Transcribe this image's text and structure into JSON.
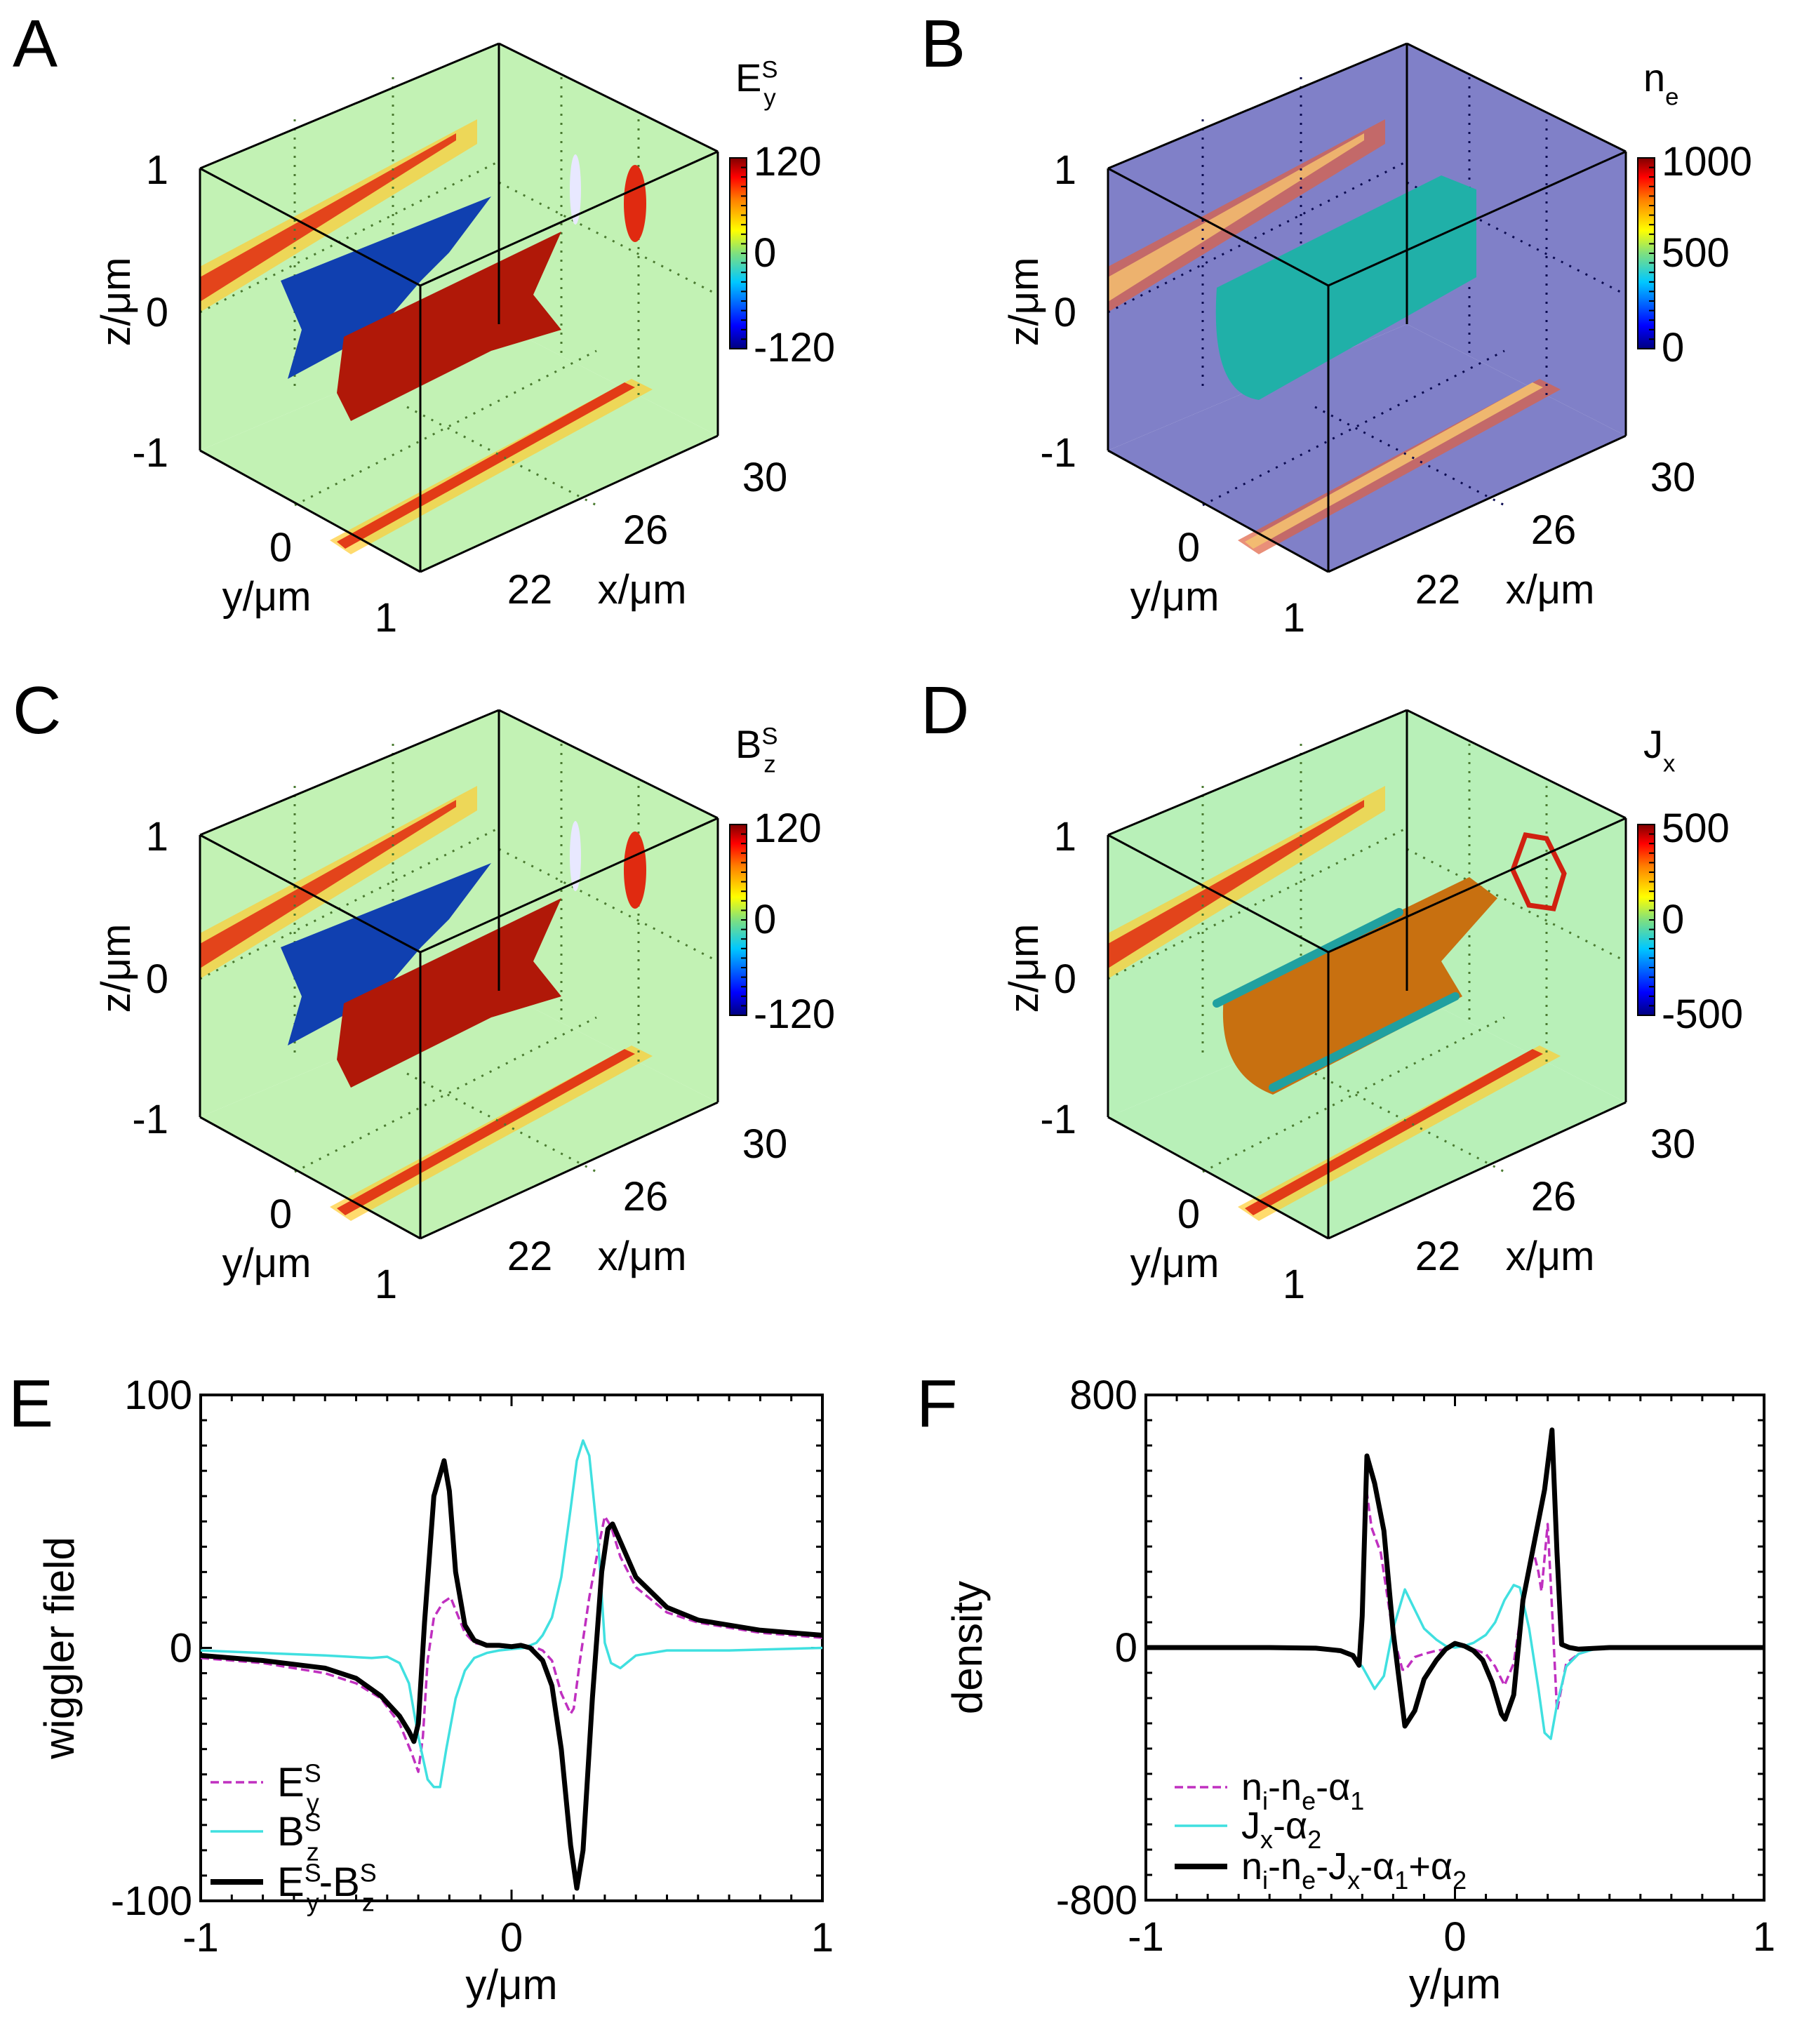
{
  "figure": {
    "panels3d": [
      {
        "id": "A",
        "letter": "A",
        "colorbar": {
          "label_main": "E",
          "label_sup": "S",
          "label_sub": "y",
          "max": "120",
          "mid": "0",
          "min": "-120"
        },
        "zlabel": "z/μm",
        "ylabel": "y/μm",
        "xlabel": "x/μm",
        "zticks": [
          "1",
          "0",
          "-1"
        ],
        "yticks": [
          "0",
          "1"
        ],
        "xticks": [
          "22",
          "26",
          "30"
        ],
        "background": "#c2f2b4",
        "isosurfaces": [
          "negative (blue) E_y^S isosurface",
          "positive (red) E_y^S isosurface"
        ]
      },
      {
        "id": "B",
        "letter": "B",
        "colorbar": {
          "label_main": "n",
          "label_sup": "",
          "label_sub": "e",
          "max": "1000",
          "mid": "500",
          "min": "0"
        },
        "zlabel": "z/μm",
        "ylabel": "y/μm",
        "xlabel": "x/μm",
        "zticks": [
          "1",
          "0",
          "-1"
        ],
        "yticks": [
          "0",
          "1"
        ],
        "xticks": [
          "22",
          "26",
          "30"
        ],
        "background": "#8080c8",
        "isosurfaces": [
          "electron density channel (teal) isosurface"
        ]
      },
      {
        "id": "C",
        "letter": "C",
        "colorbar": {
          "label_main": "B",
          "label_sup": "S",
          "label_sub": "z",
          "max": "120",
          "mid": "0",
          "min": "-120"
        },
        "zlabel": "z/μm",
        "ylabel": "y/μm",
        "xlabel": "x/μm",
        "zticks": [
          "1",
          "0",
          "-1"
        ],
        "yticks": [
          "0",
          "1"
        ],
        "xticks": [
          "22",
          "26",
          "30"
        ],
        "background": "#c2f2b4",
        "isosurfaces": [
          "negative (blue) B_z^S isosurface",
          "positive (red) B_z^S isosurface"
        ]
      },
      {
        "id": "D",
        "letter": "D",
        "colorbar": {
          "label_main": "J",
          "label_sup": "",
          "label_sub": "x",
          "max": "500",
          "mid": "0",
          "min": "-500"
        },
        "zlabel": "z/μm",
        "ylabel": "y/μm",
        "xlabel": "x/μm",
        "zticks": [
          "1",
          "0",
          "-1"
        ],
        "yticks": [
          "0",
          "1"
        ],
        "xticks": [
          "22",
          "26",
          "30"
        ],
        "background": "#b8f0b8",
        "isosurfaces": [
          "current J_x (orange) isosurface",
          "return current filaments (teal)"
        ]
      }
    ]
  },
  "chart_data": [
    {
      "id": "E",
      "letter": "E",
      "type": "line",
      "title": "",
      "xlabel": "y/μm",
      "ylabel": "wiggler field",
      "xlim": [
        -1,
        1
      ],
      "ylim": [
        -100,
        100
      ],
      "xticks": [
        "-1",
        "0",
        "1"
      ],
      "yticks": [
        "100",
        "0",
        "-100"
      ],
      "grid": false,
      "legend_position": "bottom-left",
      "series": [
        {
          "name": "E_y^S",
          "legend_main": "E",
          "legend_sup": "S",
          "legend_sub": "y",
          "color": "#c030c0",
          "style": "dashed",
          "x": [
            -1,
            -0.8,
            -0.6,
            -0.5,
            -0.42,
            -0.36,
            -0.32,
            -0.3,
            -0.285,
            -0.27,
            -0.25,
            -0.22,
            -0.196,
            -0.18,
            -0.15,
            -0.12,
            -0.08,
            -0.04,
            0,
            0.04,
            0.08,
            0.1,
            0.13,
            0.16,
            0.19,
            0.2,
            0.22,
            0.25,
            0.28,
            0.3,
            0.32,
            0.35,
            0.4,
            0.5,
            0.6,
            0.7,
            0.8,
            0.9,
            1
          ],
          "y": [
            -4,
            -6,
            -10,
            -14,
            -20,
            -30,
            -42,
            -49,
            -35,
            -5,
            12,
            18,
            20,
            15,
            6,
            2,
            1,
            0.5,
            0,
            0,
            0,
            -1,
            -5,
            -18,
            -26,
            -24,
            -5,
            20,
            40,
            52,
            48,
            36,
            24,
            14,
            10,
            8,
            6,
            5,
            4
          ]
        },
        {
          "name": "B_z^S",
          "legend_main": "B",
          "legend_sup": "S",
          "legend_sub": "z",
          "color": "#40e0e0",
          "style": "solid",
          "x": [
            -1,
            -0.8,
            -0.6,
            -0.45,
            -0.4,
            -0.36,
            -0.33,
            -0.3,
            -0.27,
            -0.25,
            -0.23,
            -0.21,
            -0.18,
            -0.15,
            -0.12,
            -0.08,
            -0.04,
            0,
            0.04,
            0.08,
            0.1,
            0.13,
            0.16,
            0.19,
            0.21,
            0.23,
            0.25,
            0.28,
            0.3,
            0.32,
            0.35,
            0.4,
            0.5,
            0.7,
            1
          ],
          "y": [
            -1,
            -2,
            -3,
            -4,
            -3.5,
            -6,
            -14,
            -35,
            -52,
            -55,
            -55,
            -40,
            -20,
            -9,
            -4,
            -2,
            -1,
            -0.5,
            0,
            2,
            5,
            12,
            28,
            55,
            74,
            82,
            76,
            40,
            2,
            -6,
            -8,
            -3,
            -1,
            -1,
            0
          ]
        },
        {
          "name": "E_y^S-B_z^S",
          "legend_main": "E",
          "legend_sup": "S",
          "legend_sub": "y",
          "legend_main2": "-B",
          "legend_sup2": "S",
          "legend_sub2": "z",
          "color": "#000000",
          "style": "solid",
          "x": [
            -1,
            -0.8,
            -0.6,
            -0.5,
            -0.42,
            -0.36,
            -0.33,
            -0.314,
            -0.3,
            -0.28,
            -0.25,
            -0.217,
            -0.2,
            -0.18,
            -0.15,
            -0.12,
            -0.08,
            -0.04,
            0,
            0.03,
            0.06,
            0.1,
            0.13,
            0.16,
            0.19,
            0.21,
            0.23,
            0.26,
            0.29,
            0.31,
            0.325,
            0.35,
            0.4,
            0.5,
            0.6,
            0.7,
            0.8,
            0.9,
            1
          ],
          "y": [
            -3,
            -5,
            -8,
            -12,
            -19,
            -27,
            -33,
            -37,
            -30,
            10,
            60,
            74,
            62,
            30,
            9,
            3,
            1,
            1,
            0.5,
            1,
            0,
            -5,
            -15,
            -40,
            -78,
            -95,
            -80,
            -20,
            30,
            47,
            49,
            42,
            28,
            16,
            11,
            9,
            7,
            6,
            5
          ]
        }
      ]
    },
    {
      "id": "F",
      "letter": "F",
      "type": "line",
      "title": "",
      "xlabel": "y/μm",
      "ylabel": "density",
      "xlim": [
        -1,
        1
      ],
      "ylim": [
        -800,
        800
      ],
      "xticks": [
        "-1",
        "0",
        "1"
      ],
      "yticks": [
        "800",
        "0",
        "-800"
      ],
      "grid": false,
      "legend_position": "bottom-left",
      "series": [
        {
          "name": "n_i-n_e-α_1",
          "legend_text": "n|i|-n|e|-α|1",
          "color": "#c030c0",
          "style": "dashed",
          "x": [
            -1,
            -0.6,
            -0.4,
            -0.34,
            -0.31,
            -0.3,
            -0.285,
            -0.27,
            -0.24,
            -0.2,
            -0.17,
            -0.16,
            -0.13,
            -0.1,
            -0.06,
            -0.03,
            0,
            0.03,
            0.06,
            0.1,
            0.13,
            0.16,
            0.19,
            0.22,
            0.25,
            0.27,
            0.28,
            0.3,
            0.31,
            0.33,
            0.36,
            0.4,
            0.45,
            0.6,
            1
          ],
          "y": [
            0,
            0,
            -5,
            -20,
            -60,
            50,
            490,
            380,
            300,
            40,
            -70,
            -70,
            -30,
            -20,
            -10,
            -5,
            10,
            5,
            -5,
            -20,
            -60,
            -120,
            -50,
            150,
            320,
            240,
            178,
            391,
            200,
            -200,
            -50,
            -20,
            -5,
            0,
            0
          ]
        },
        {
          "name": "J_x-α_2",
          "legend_text": "J|x|-α|2",
          "color": "#40e0e0",
          "style": "solid",
          "x": [
            -1,
            -0.6,
            -0.4,
            -0.34,
            -0.3,
            -0.26,
            -0.23,
            -0.2,
            -0.162,
            -0.13,
            -0.1,
            -0.06,
            -0.03,
            0,
            0.03,
            0.06,
            0.1,
            0.13,
            0.16,
            0.19,
            0.21,
            0.24,
            0.27,
            0.29,
            0.31,
            0.33,
            0.36,
            0.4,
            0.45,
            0.6,
            1
          ],
          "y": [
            0,
            0,
            -5,
            -20,
            -60,
            -131,
            -90,
            60,
            184,
            120,
            60,
            25,
            5,
            0,
            5,
            15,
            40,
            80,
            150,
            198,
            190,
            60,
            -130,
            -270,
            -289,
            -180,
            -60,
            -20,
            -5,
            0,
            0
          ]
        },
        {
          "name": "n_i-n_e-J_x-α_1+α_2",
          "legend_text": "n|i|-n|e|-J|x|-α|1|+α|2",
          "color": "#000000",
          "style": "solid",
          "x": [
            -1,
            -0.6,
            -0.45,
            -0.37,
            -0.33,
            -0.31,
            -0.3,
            -0.285,
            -0.26,
            -0.23,
            -0.2,
            -0.162,
            -0.13,
            -0.1,
            -0.06,
            -0.03,
            0,
            0.03,
            0.06,
            0.09,
            0.12,
            0.15,
            0.162,
            0.19,
            0.22,
            0.26,
            0.29,
            0.314,
            0.33,
            0.345,
            0.37,
            0.4,
            0.5,
            0.6,
            1
          ],
          "y": [
            0,
            0,
            -2,
            -10,
            -25,
            -56,
            100,
            607,
            520,
            370,
            50,
            -249,
            -200,
            -100,
            -40,
            -5,
            13,
            5,
            -10,
            -40,
            -110,
            -210,
            -227,
            -150,
            150,
            350,
            500,
            689,
            300,
            10,
            0,
            -5,
            0,
            0,
            0
          ]
        }
      ]
    }
  ]
}
